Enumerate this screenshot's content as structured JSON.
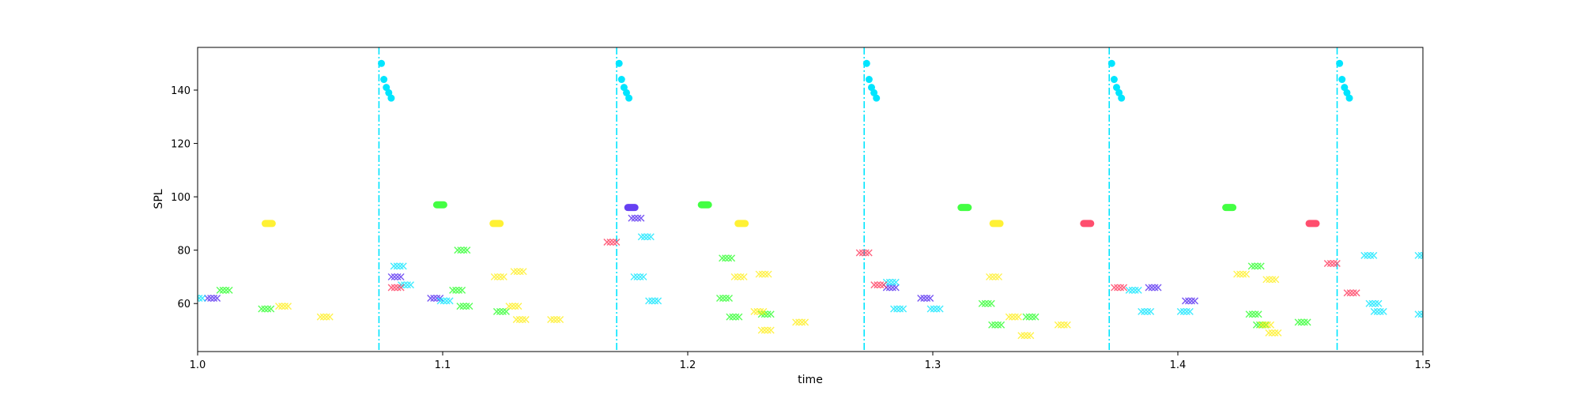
{
  "chart_data": {
    "type": "scatter",
    "title": "",
    "xlabel": "time",
    "ylabel": "SPL",
    "xlim": [
      1.0,
      1.5
    ],
    "ylim": [
      42,
      156
    ],
    "xticks": [
      "1.0",
      "1.1",
      "1.2",
      "1.3",
      "1.4",
      "1.5"
    ],
    "yticks": [
      "60",
      "80",
      "100",
      "120",
      "140"
    ],
    "grid": false,
    "legend": "none",
    "colors": {
      "cyan": "#00e5ff",
      "blue": "#4b1ef0",
      "green": "#22ff22",
      "yellow": "#ffee11",
      "red": "#ff2f55"
    },
    "vlines": [
      1.074,
      1.171,
      1.272,
      1.372,
      1.465
    ],
    "series": [
      {
        "marker": "o",
        "color": "#00e5ff",
        "points": [
          [
            1.075,
            150
          ],
          [
            1.076,
            144
          ],
          [
            1.077,
            141
          ],
          [
            1.078,
            139
          ],
          [
            1.079,
            137
          ],
          [
            1.172,
            150
          ],
          [
            1.173,
            144
          ],
          [
            1.174,
            141
          ],
          [
            1.175,
            139
          ],
          [
            1.176,
            137
          ],
          [
            1.273,
            150
          ],
          [
            1.274,
            144
          ],
          [
            1.275,
            141
          ],
          [
            1.276,
            139
          ],
          [
            1.277,
            137
          ],
          [
            1.373,
            150
          ],
          [
            1.374,
            144
          ],
          [
            1.375,
            141
          ],
          [
            1.376,
            139
          ],
          [
            1.377,
            137
          ],
          [
            1.466,
            150
          ],
          [
            1.467,
            144
          ],
          [
            1.468,
            141
          ],
          [
            1.469,
            139
          ],
          [
            1.47,
            137
          ]
        ]
      },
      {
        "marker": "o",
        "color": "#ffee11",
        "points": [
          [
            1.029,
            90
          ],
          [
            1.122,
            90
          ],
          [
            1.222,
            90
          ],
          [
            1.326,
            90
          ]
        ]
      },
      {
        "marker": "o",
        "color": "#22ff22",
        "points": [
          [
            1.099,
            97
          ],
          [
            1.207,
            97
          ],
          [
            1.313,
            96
          ],
          [
            1.421,
            96
          ]
        ]
      },
      {
        "marker": "o",
        "color": "#4b1ef0",
        "points": [
          [
            1.177,
            96
          ]
        ]
      },
      {
        "marker": "o",
        "color": "#ff2f55",
        "points": [
          [
            1.363,
            90
          ],
          [
            1.455,
            90
          ]
        ]
      },
      {
        "marker": "x",
        "color": "#4b1ef0",
        "points": [
          [
            1.006,
            62
          ],
          [
            1.081,
            70
          ],
          [
            1.097,
            62
          ],
          [
            1.179,
            92
          ],
          [
            1.283,
            66
          ],
          [
            1.297,
            62
          ],
          [
            1.39,
            66
          ],
          [
            1.405,
            61
          ]
        ]
      },
      {
        "marker": "x",
        "color": "#00e5ff",
        "points": [
          [
            1.0,
            62
          ],
          [
            1.082,
            74
          ],
          [
            1.085,
            67
          ],
          [
            1.101,
            61
          ],
          [
            1.18,
            70
          ],
          [
            1.183,
            85
          ],
          [
            1.186,
            61
          ],
          [
            1.283,
            68
          ],
          [
            1.286,
            58
          ],
          [
            1.301,
            58
          ],
          [
            1.382,
            65
          ],
          [
            1.387,
            57
          ],
          [
            1.403,
            57
          ],
          [
            1.478,
            78
          ],
          [
            1.48,
            60
          ],
          [
            1.482,
            57
          ],
          [
            1.5,
            56
          ],
          [
            1.5,
            78
          ]
        ]
      },
      {
        "marker": "x",
        "color": "#22ff22",
        "points": [
          [
            1.011,
            65
          ],
          [
            1.028,
            58
          ],
          [
            1.108,
            80
          ],
          [
            1.106,
            65
          ],
          [
            1.109,
            59
          ],
          [
            1.124,
            57
          ],
          [
            1.215,
            62
          ],
          [
            1.216,
            77
          ],
          [
            1.219,
            55
          ],
          [
            1.232,
            56
          ],
          [
            1.322,
            60
          ],
          [
            1.326,
            52
          ],
          [
            1.34,
            55
          ],
          [
            1.431,
            56
          ],
          [
            1.432,
            74
          ],
          [
            1.434,
            52
          ],
          [
            1.451,
            53
          ]
        ]
      },
      {
        "marker": "x",
        "color": "#ffee11",
        "points": [
          [
            1.035,
            59
          ],
          [
            1.052,
            55
          ],
          [
            1.123,
            70
          ],
          [
            1.129,
            59
          ],
          [
            1.131,
            72
          ],
          [
            1.132,
            54
          ],
          [
            1.146,
            54
          ],
          [
            1.221,
            70
          ],
          [
            1.229,
            57
          ],
          [
            1.231,
            71
          ],
          [
            1.232,
            50
          ],
          [
            1.246,
            53
          ],
          [
            1.325,
            70
          ],
          [
            1.333,
            55
          ],
          [
            1.338,
            48
          ],
          [
            1.353,
            52
          ],
          [
            1.426,
            71
          ],
          [
            1.436,
            52
          ],
          [
            1.438,
            69
          ],
          [
            1.439,
            49
          ]
        ]
      },
      {
        "marker": "x",
        "color": "#ff2f55",
        "points": [
          [
            1.081,
            66
          ],
          [
            1.169,
            83
          ],
          [
            1.272,
            79
          ],
          [
            1.278,
            67
          ],
          [
            1.376,
            66
          ],
          [
            1.463,
            75
          ],
          [
            1.471,
            64
          ]
        ]
      }
    ]
  }
}
